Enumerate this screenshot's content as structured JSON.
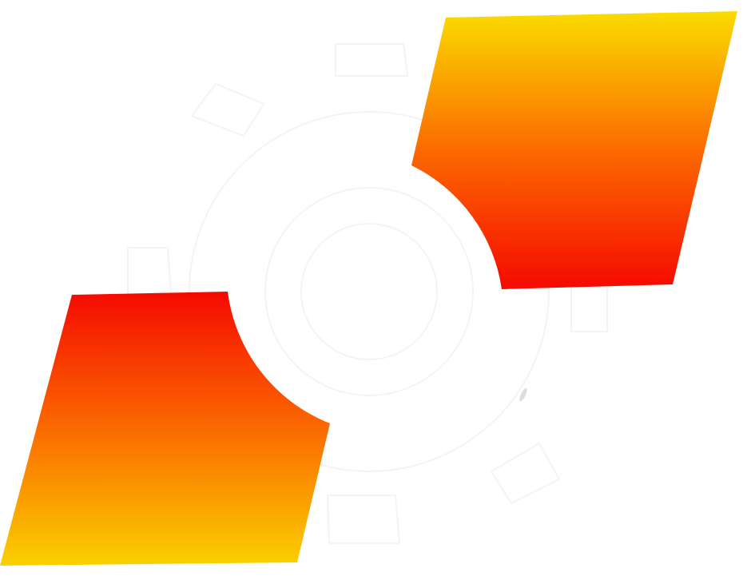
{
  "logo": {
    "name": "gear-with-parallelograms-logo",
    "colors": {
      "background": "#ffffff",
      "gradient_red": "#f50a00",
      "gradient_orange": "#fb6a00",
      "gradient_yellow": "#fadc00",
      "gear_outline": "#f4f4f4",
      "smudge": "#cfcfcf"
    }
  }
}
